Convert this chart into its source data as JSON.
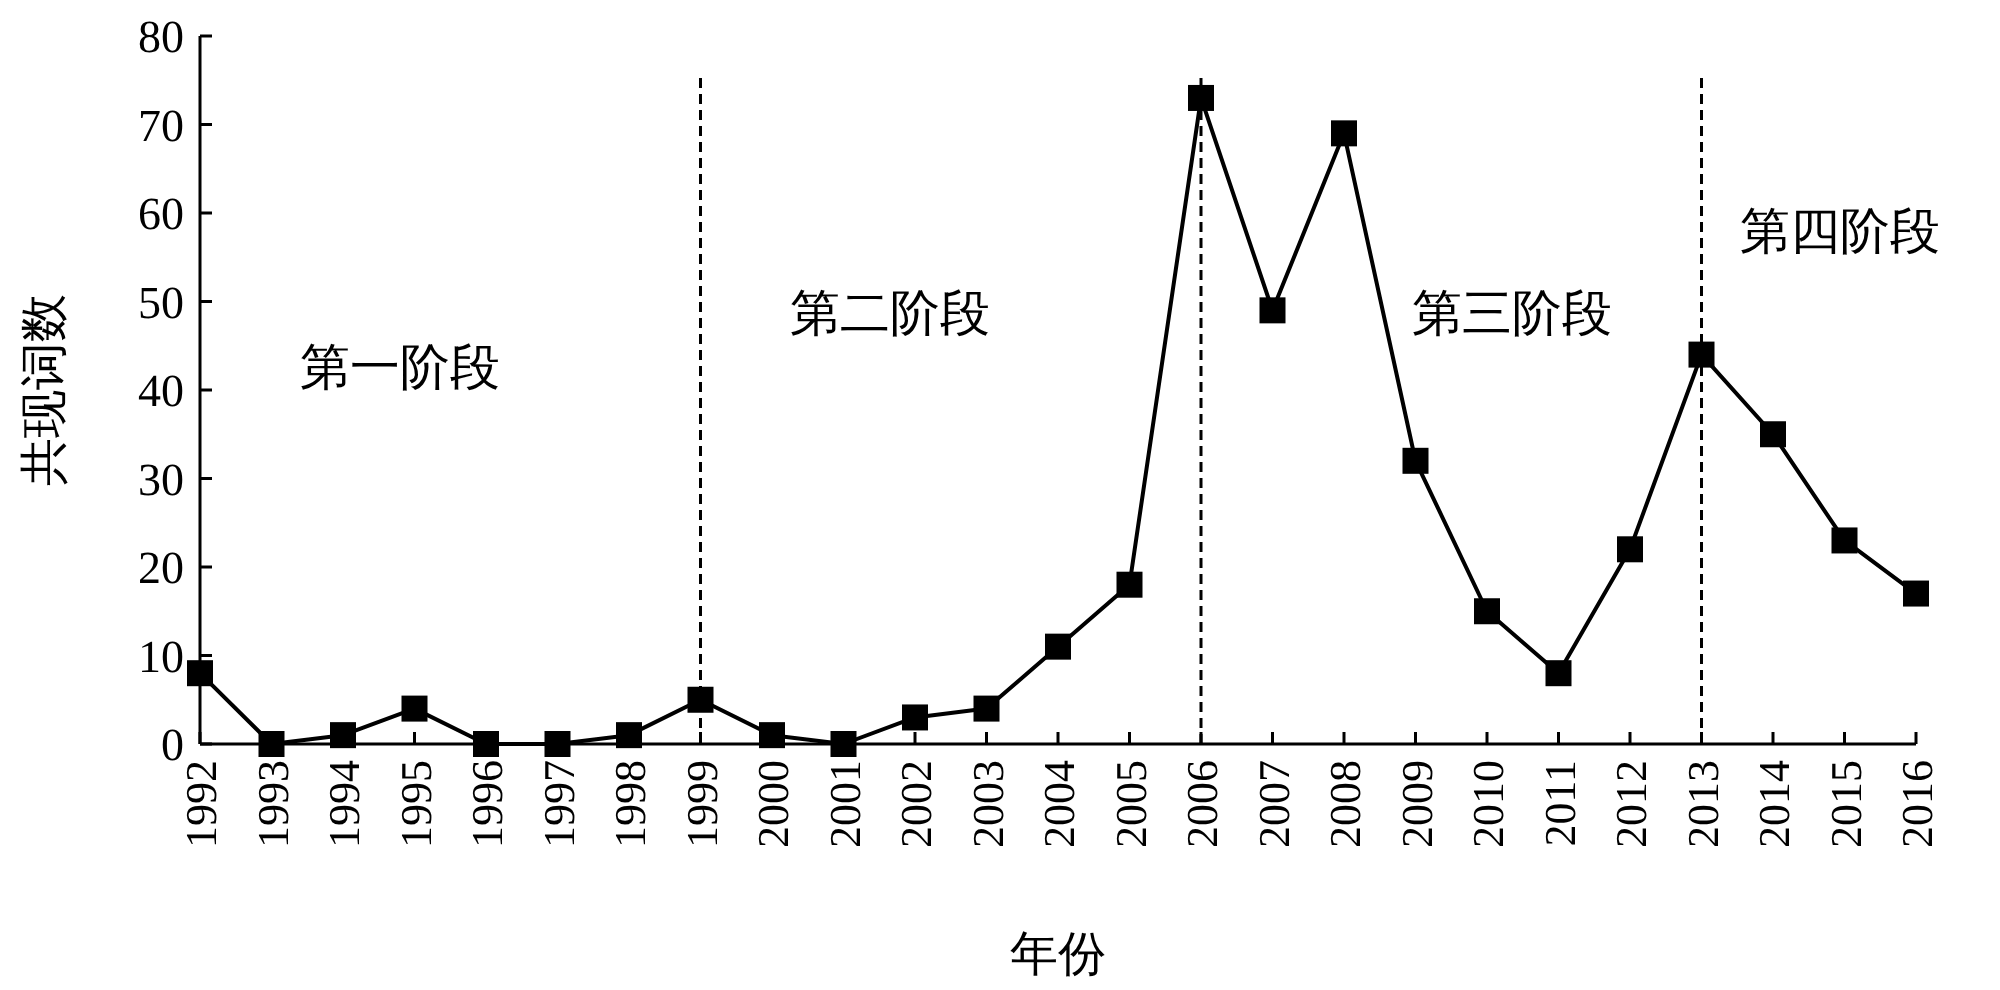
{
  "chart_data": {
    "type": "line",
    "xlabel": "年份",
    "ylabel": "共现词数",
    "categories": [
      "1992",
      "1993",
      "1994",
      "1995",
      "1996",
      "1997",
      "1998",
      "1999",
      "2000",
      "2001",
      "2002",
      "2003",
      "2004",
      "2005",
      "2006",
      "2007",
      "2008",
      "2009",
      "2010",
      "2011",
      "2012",
      "2013",
      "2014",
      "2015",
      "2016"
    ],
    "values": [
      8,
      0,
      1,
      4,
      0,
      0,
      1,
      5,
      1,
      0,
      3,
      4,
      11,
      18,
      73,
      49,
      69,
      32,
      15,
      8,
      22,
      44,
      35,
      23,
      17
    ],
    "color": "#000000",
    "marker": "square",
    "line_style": "solid",
    "grid": false,
    "ylim": [
      0,
      80
    ],
    "yticks": [
      0,
      10,
      20,
      30,
      40,
      50,
      60,
      70,
      80
    ],
    "ref_lines": [
      {
        "axis": "x",
        "value": "1999",
        "line_style": "dashed"
      },
      {
        "axis": "x",
        "value": "2006",
        "line_style": "dashed"
      },
      {
        "axis": "x",
        "value": "2013",
        "line_style": "dashed"
      }
    ],
    "annotations": [
      "第一阶段",
      "第二阶段",
      "第三阶段",
      "第四阶段"
    ]
  }
}
